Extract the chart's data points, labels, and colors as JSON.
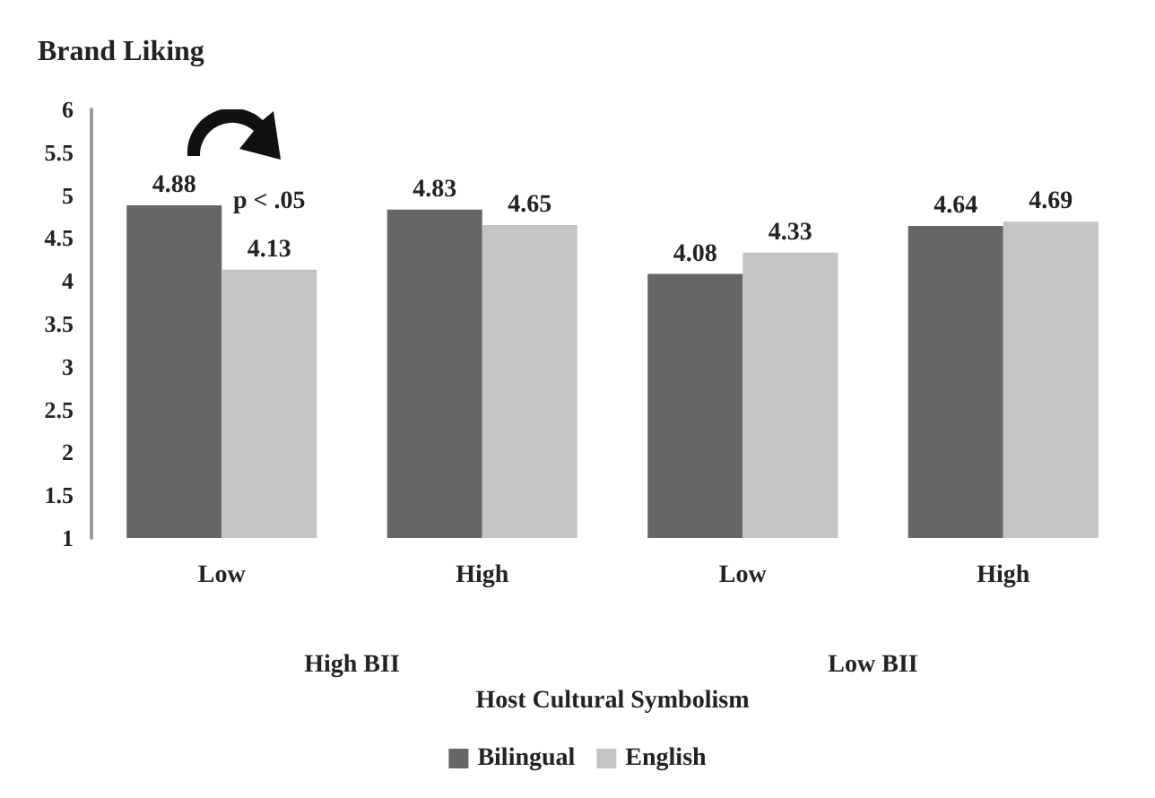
{
  "chart_data": {
    "type": "bar",
    "title": "Brand Liking",
    "xlabel": "Host Cultural Symbolism",
    "categories": [
      "Low",
      "High",
      "Low",
      "High"
    ],
    "series": [
      {
        "name": "Bilingual",
        "color": "#666666",
        "values": [
          4.88,
          4.83,
          4.08,
          4.64
        ]
      },
      {
        "name": "English",
        "color": "#c4c4c6",
        "values": [
          4.13,
          4.65,
          4.33,
          4.69
        ]
      }
    ],
    "ylim": [
      1,
      6
    ],
    "yticks": [
      1,
      1.5,
      2,
      2.5,
      3,
      3.5,
      4,
      4.5,
      5,
      5.5,
      6
    ],
    "annotations": [
      "p < .05",
      "High BII",
      "Low BII"
    ],
    "data_labels": true,
    "grid": false,
    "legend": "bottom"
  }
}
